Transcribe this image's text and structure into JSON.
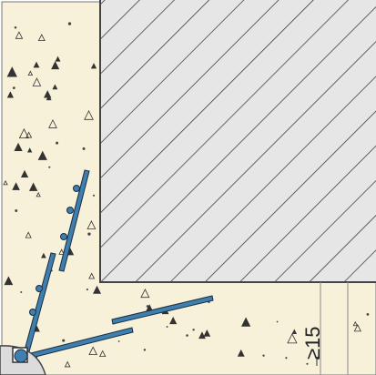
{
  "diagram": {
    "dimension_label": "≥15",
    "colors": {
      "concrete": "#f6f1d8",
      "hatch_fill": "#e6e6e6",
      "hatch_line": "#2b2b2b",
      "rebar_fill": "#3f7fb0",
      "rebar_stroke": "#1a2d40",
      "outline": "#555555"
    },
    "elements": [
      "concrete-section",
      "hatched-column",
      "rebar-bars",
      "corner-anchor",
      "dimension-marker"
    ]
  }
}
